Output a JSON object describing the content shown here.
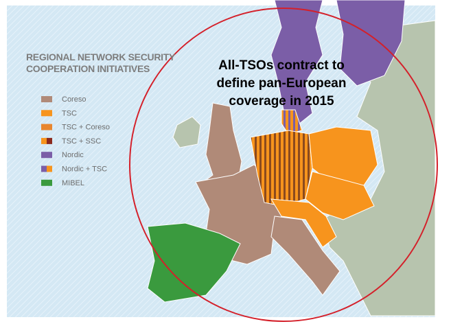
{
  "title": [
    "REGIONAL NETWORK SECURITY",
    "COOPERATION INITIATIVES"
  ],
  "legend": [
    {
      "label": "Coreso",
      "colors": [
        "#b08a78"
      ]
    },
    {
      "label": "TSC",
      "colors": [
        "#f7941d"
      ]
    },
    {
      "label": "TSC + Coreso",
      "colors": [
        "#e8862e"
      ]
    },
    {
      "label": "TSC + SSC",
      "colors": [
        "#f7941d",
        "#8b2a1e"
      ]
    },
    {
      "label": "Nordic",
      "colors": [
        "#7b5ea7"
      ]
    },
    {
      "label": "Nordic + TSC",
      "colors": [
        "#7b5ea7",
        "#f7941d"
      ]
    },
    {
      "label": "MIBEL",
      "colors": [
        "#3a9a3e"
      ]
    }
  ],
  "annotation": [
    "All-TSOs contract to",
    "define pan-European",
    "coverage in 2015"
  ]
}
